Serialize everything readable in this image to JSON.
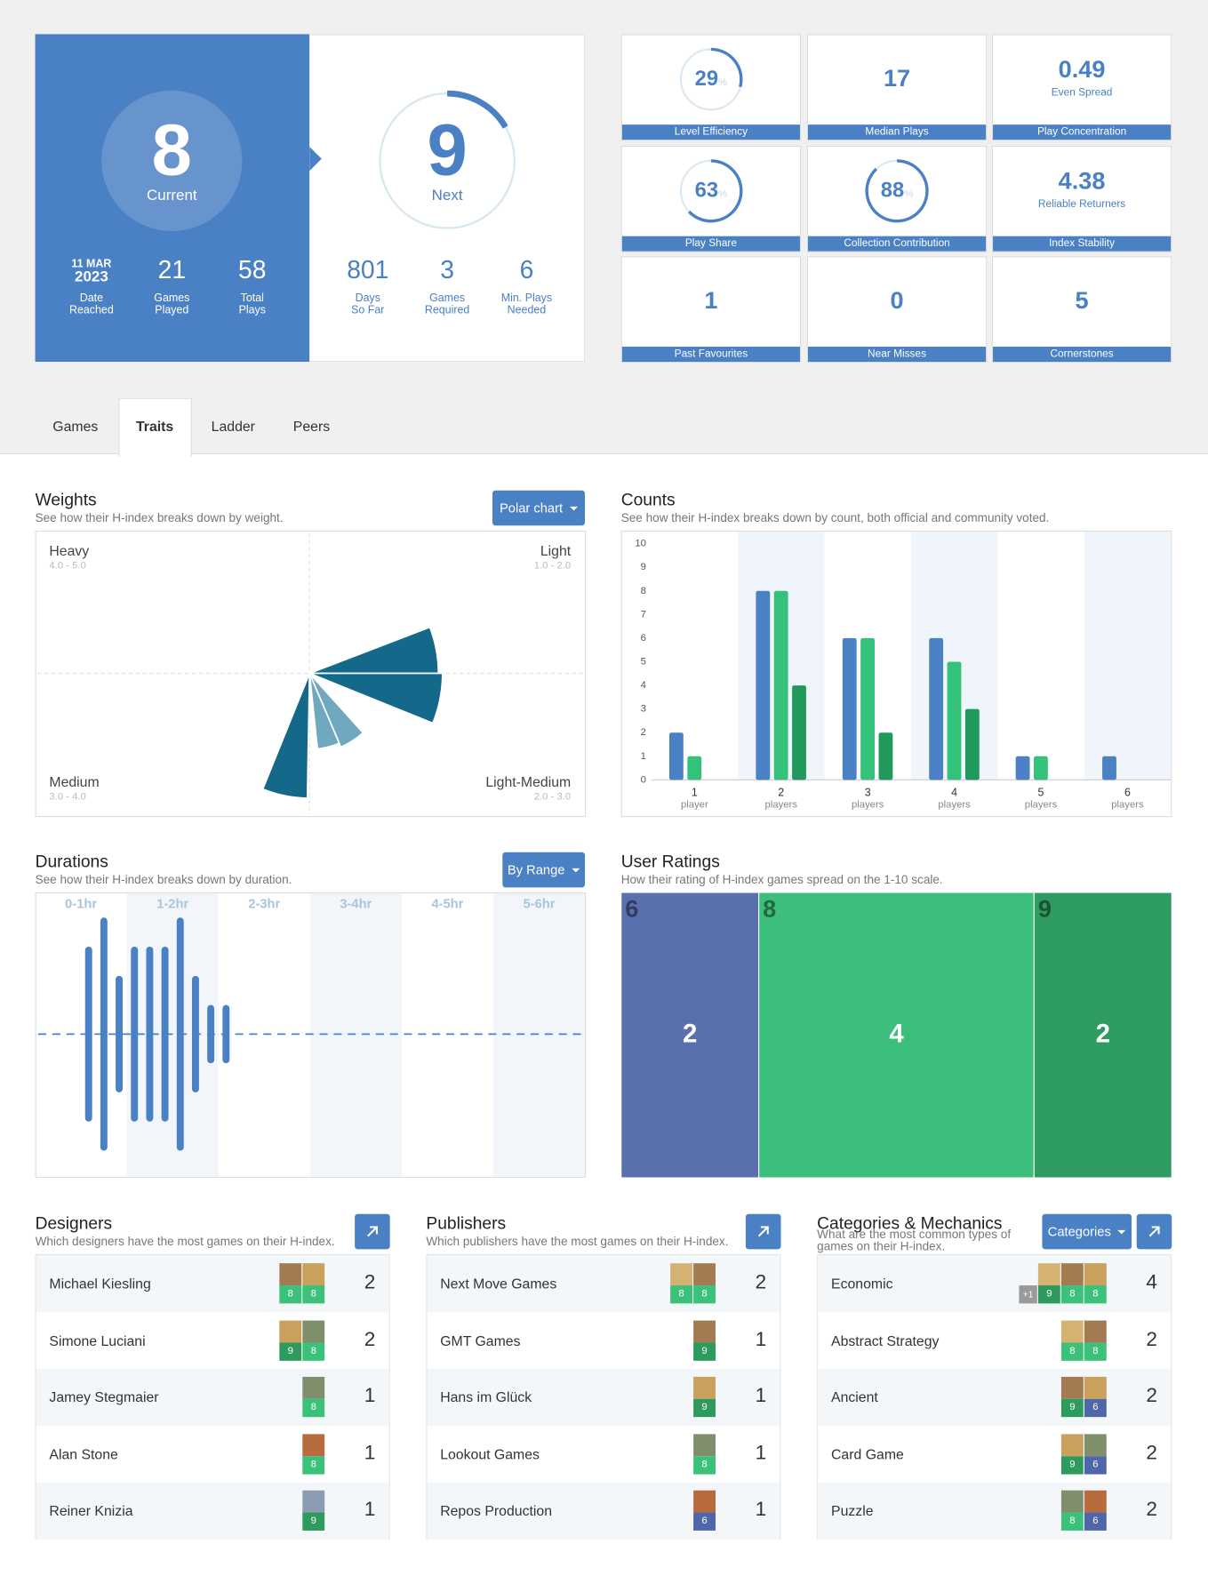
{
  "level": {
    "current": {
      "value": 8,
      "label": "Current"
    },
    "next": {
      "value": 9,
      "label": "Next"
    },
    "current_stats": [
      {
        "value": [
          "11 MAR",
          "2023"
        ],
        "label": [
          "Date",
          "Reached"
        ]
      },
      {
        "value": 21,
        "label": [
          "Games",
          "Played"
        ]
      },
      {
        "value": 58,
        "label": [
          "Total",
          "Plays"
        ]
      }
    ],
    "next_stats": [
      {
        "value": 801,
        "label": [
          "Days",
          "So Far"
        ]
      },
      {
        "value": 3,
        "label": [
          "Games",
          "Required"
        ]
      },
      {
        "value": 6,
        "label": [
          "Min. Plays",
          "Needed"
        ]
      }
    ]
  },
  "metrics": [
    {
      "value": 29,
      "unit": "%",
      "label": "Level Efficiency"
    },
    {
      "value": 17,
      "label": "Median Plays"
    },
    {
      "value": 0.49,
      "caption": "Even Spread",
      "label": "Play Concentration"
    },
    {
      "value": 63,
      "unit": "%",
      "label": "Play Share"
    },
    {
      "value": 88,
      "unit": "%",
      "label": "Collection Contribution"
    },
    {
      "value": 4.38,
      "caption": "Reliable Returners",
      "label": "Index Stability"
    },
    {
      "value": 1,
      "label": "Past Favourites"
    },
    {
      "value": 0,
      "label": "Near Misses"
    },
    {
      "value": 5,
      "label": "Cornerstones"
    }
  ],
  "tabs": {
    "items": [
      "Games",
      "Traits",
      "Ladder",
      "Peers"
    ],
    "active": 1
  },
  "weights": {
    "title": "Weights",
    "subtitle": "See how their H-index breaks down by weight.",
    "button": "Polar chart",
    "quadrants": [
      {
        "name": "Heavy",
        "range": "4.0 - 5.0"
      },
      {
        "name": "Light",
        "range": "1.0 - 2.0"
      },
      {
        "name": "Medium",
        "range": "3.0 - 4.0"
      },
      {
        "name": "Light-Medium",
        "range": "2.0 - 3.0"
      }
    ],
    "chart": {
      "type": "polar",
      "values": [
        9.5,
        9.8,
        5.9,
        5.6,
        9.2
      ],
      "colors": [
        "#14688a",
        "#14688a",
        "#6fa8bf",
        "#6fa8bf",
        "#14688a"
      ]
    }
  },
  "counts": {
    "title": "Counts",
    "subtitle": "See how their H-index breaks down by count, both official and community voted.",
    "chart": {
      "type": "bar",
      "categories": [
        "1",
        "2",
        "3",
        "4",
        "5",
        "6"
      ],
      "category_units": [
        "player",
        "players",
        "players",
        "players",
        "players",
        "players"
      ],
      "series": [
        {
          "color": "#4a80c4",
          "values": [
            2,
            8,
            6,
            6,
            1,
            1
          ]
        },
        {
          "color": "#34c27a",
          "values": [
            1,
            8,
            6,
            5,
            1,
            0
          ]
        },
        {
          "color": "#1f9a5b",
          "values": [
            0,
            4,
            2,
            3,
            0,
            0
          ]
        }
      ],
      "ylim": [
        0,
        10
      ],
      "yticks": [
        0,
        1,
        2,
        3,
        4,
        5,
        6,
        7,
        8,
        9,
        10
      ]
    }
  },
  "durations": {
    "title": "Durations",
    "subtitle": "See how their H-index breaks down by duration.",
    "button": "By Range",
    "ranges": [
      "0-1hr",
      "1-2hr",
      "2-3hr",
      "3-4hr",
      "4-5hr",
      "5-6hr"
    ],
    "chart": {
      "type": "bar",
      "x": [
        35,
        45,
        55,
        65,
        75,
        85,
        95,
        105,
        115,
        125
      ],
      "values": [
        3,
        4,
        2,
        3,
        3,
        3,
        4,
        2,
        1,
        1
      ],
      "xlim": [
        0,
        360
      ],
      "color": "#4a80c4"
    }
  },
  "ratings": {
    "title": "User Ratings",
    "subtitle": "How their rating of H-index games spread on the 1-10 scale.",
    "chart": {
      "type": "bar",
      "categories": [
        6,
        8,
        9
      ],
      "values": [
        2,
        4,
        2
      ],
      "colors": [
        "#5a6fae",
        "#3cbf7c",
        "#2e9b60"
      ]
    }
  },
  "rating_colors": {
    "6": "#4f66a8",
    "8": "#3cc17b",
    "9": "#2d9a5e"
  },
  "designers": {
    "title": "Designers",
    "subtitle": "Which designers have the most games on their H-index.",
    "rows": [
      {
        "name": "Michael Kiesling",
        "ratings": [
          8,
          8
        ],
        "count": 2
      },
      {
        "name": "Simone Luciani",
        "ratings": [
          9,
          8
        ],
        "count": 2
      },
      {
        "name": "Jamey Stegmaier",
        "ratings": [
          8
        ],
        "count": 1
      },
      {
        "name": "Alan Stone",
        "ratings": [
          8
        ],
        "count": 1
      },
      {
        "name": "Reiner Knizia",
        "ratings": [
          9
        ],
        "count": 1
      }
    ]
  },
  "publishers": {
    "title": "Publishers",
    "subtitle": "Which publishers have the most games on their H-index.",
    "rows": [
      {
        "name": "Next Move Games",
        "ratings": [
          8,
          8
        ],
        "count": 2
      },
      {
        "name": "GMT Games",
        "ratings": [
          9
        ],
        "count": 1
      },
      {
        "name": "Hans im Glück",
        "ratings": [
          9
        ],
        "count": 1
      },
      {
        "name": "Lookout Games",
        "ratings": [
          8
        ],
        "count": 1
      },
      {
        "name": "Repos Production",
        "ratings": [
          6
        ],
        "count": 1
      }
    ]
  },
  "categories": {
    "title": "Categories & Mechanics",
    "subtitle": "What are the most common types of games on their H-index.",
    "button": "Categories",
    "rows": [
      {
        "name": "Economic",
        "more": "+1",
        "ratings": [
          9,
          8,
          8
        ],
        "count": 4
      },
      {
        "name": "Abstract Strategy",
        "ratings": [
          8,
          8
        ],
        "count": 2
      },
      {
        "name": "Ancient",
        "ratings": [
          9,
          6
        ],
        "count": 2
      },
      {
        "name": "Card Game",
        "ratings": [
          9,
          6
        ],
        "count": 2
      },
      {
        "name": "Puzzle",
        "ratings": [
          8,
          6
        ],
        "count": 2
      }
    ]
  }
}
